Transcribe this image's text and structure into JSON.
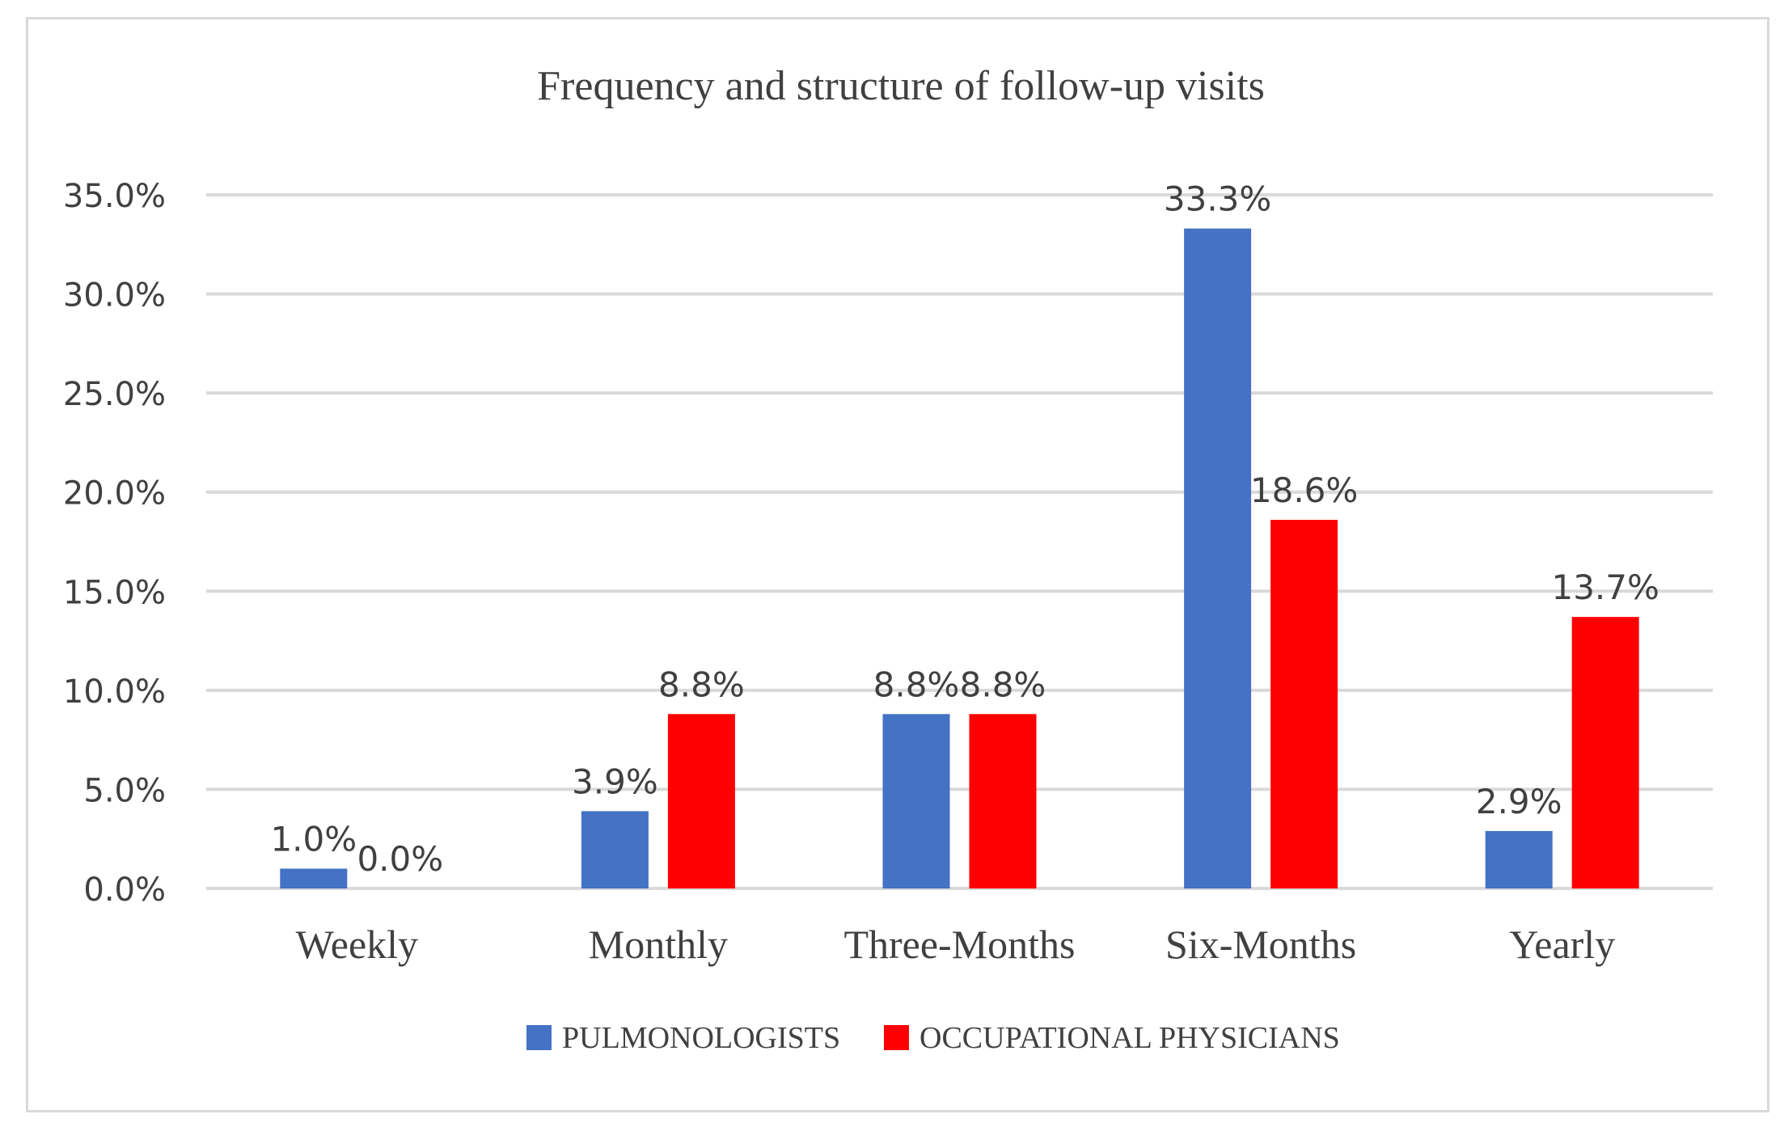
{
  "chart_data": {
    "type": "bar",
    "title": "Frequency and structure of follow-up visits",
    "categories": [
      "Weekly",
      "Monthly",
      "Three-Months",
      "Six-Months",
      "Yearly"
    ],
    "series": [
      {
        "name": "PULMONOLOGISTS",
        "color": "#4472c4",
        "values": [
          1.0,
          3.9,
          8.8,
          33.3,
          2.9
        ],
        "labels": [
          "1.0%",
          "3.9%",
          "8.8%",
          "33.3%",
          "2.9%"
        ]
      },
      {
        "name": "OCCUPATIONAL PHYSICIANS",
        "color": "#ff0000",
        "values": [
          0.0,
          8.8,
          8.8,
          18.6,
          13.7
        ],
        "labels": [
          "0.0%",
          "8.8%",
          "8.8%",
          "18.6%",
          "13.7%"
        ]
      }
    ],
    "yticks": [
      0,
      5,
      10,
      15,
      20,
      25,
      30,
      35
    ],
    "ytick_labels": [
      "0.0%",
      "5.0%",
      "10.0%",
      "15.0%",
      "20.0%",
      "25.0%",
      "30.0%",
      "35.0%"
    ],
    "ylim": [
      0,
      35
    ],
    "xlabel": "",
    "ylabel": "",
    "grid": true,
    "legend_position": "bottom"
  }
}
